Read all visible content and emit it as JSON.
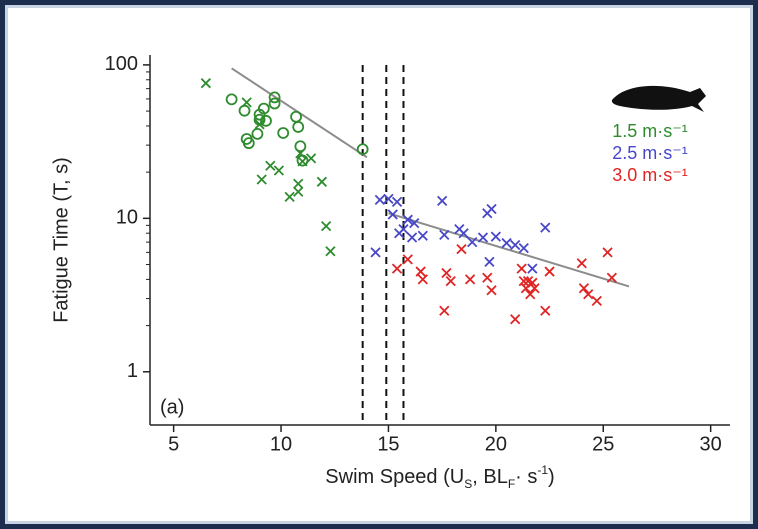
{
  "chart_data": {
    "type": "scatter",
    "x_label": [
      "Swim Speed (U",
      "S",
      ", BL",
      "F",
      "· s",
      "-1",
      ")"
    ],
    "y_label": "Fatigue Time (T, s)",
    "panel_label": "(a)",
    "xlim": [
      3.9,
      30.9
    ],
    "ylim": [
      0.45,
      116
    ],
    "xticks": [
      5,
      10,
      15,
      20,
      25,
      30
    ],
    "yticks": [
      1,
      10,
      100
    ],
    "y_scale": "log",
    "legend": "upper right",
    "series": [
      {
        "name": "1.5 m·s⁻¹",
        "color": "#2e8b2e",
        "marker": "circle",
        "x": [
          7.7,
          8.3,
          8.4,
          8.5,
          9.0,
          9.0,
          8.9,
          9.2,
          9.3,
          9.7,
          9.7,
          10.1,
          10.7,
          10.8,
          10.9,
          11.0,
          13.8
        ],
        "values": [
          59.6,
          50.3,
          32.9,
          30.9,
          43.9,
          47.4,
          35.5,
          51.9,
          43.2,
          61.4,
          56.0,
          36.0,
          45.9,
          39.4,
          29.5,
          23.8,
          28.2
        ]
      },
      {
        "color": "#2e8b2e",
        "marker": "x",
        "x": [
          6.5,
          8.4,
          9.0,
          9.1,
          9.5,
          9.9,
          10.4,
          10.8,
          10.8,
          10.9,
          11.0,
          11.4,
          11.9,
          12.1,
          12.3
        ],
        "values": [
          76,
          57,
          41,
          17.9,
          22,
          20.5,
          13.8,
          16.8,
          14.9,
          26.5,
          23.5,
          24.6,
          17.3,
          8.9,
          6.1
        ]
      },
      {
        "name": "2.5 m·s⁻¹",
        "color": "#4747c8",
        "marker": "x",
        "x": [
          14.4,
          14.6,
          15.0,
          15.2,
          15.4,
          15.5,
          15.7,
          15.9,
          16.1,
          16.2,
          16.6,
          17.5,
          17.6,
          18.3,
          18.5,
          18.9,
          19.4,
          19.6,
          19.7,
          19.8,
          20.0,
          20.5,
          20.9,
          21.3,
          21.7,
          22.3
        ],
        "values": [
          6.0,
          13.2,
          13.4,
          10.6,
          12.8,
          8.0,
          8.5,
          9.8,
          7.5,
          9.3,
          7.7,
          13.0,
          7.8,
          8.5,
          8.0,
          7.0,
          7.5,
          10.8,
          5.2,
          11.5,
          7.6,
          6.9,
          6.7,
          6.4,
          4.7,
          8.7
        ]
      },
      {
        "name": "3.0 m·s⁻¹",
        "color": "#e02424",
        "marker": "x",
        "x": [
          15.4,
          15.9,
          16.5,
          16.6,
          17.6,
          17.7,
          17.9,
          18.4,
          18.8,
          19.6,
          19.8,
          20.9,
          21.2,
          21.3,
          21.4,
          21.5,
          21.6,
          21.7,
          21.8,
          22.3,
          22.5,
          24.0,
          24.1,
          24.3,
          24.7,
          25.2,
          25.4
        ],
        "values": [
          4.7,
          5.4,
          4.5,
          4.0,
          2.5,
          4.4,
          3.9,
          6.3,
          4.0,
          4.1,
          3.4,
          2.2,
          4.7,
          3.9,
          3.5,
          3.9,
          3.2,
          3.8,
          3.5,
          2.5,
          4.5,
          5.1,
          3.5,
          3.2,
          2.9,
          6.0,
          4.1
        ]
      }
    ],
    "fit_lines": [
      {
        "color": "#8c8c8c",
        "x": [
          7.7,
          14.0
        ],
        "values": [
          95,
          25
        ]
      },
      {
        "color": "#8c8c8c",
        "x": [
          15.0,
          26.2
        ],
        "values": [
          10.8,
          3.6
        ]
      }
    ],
    "vlines": [
      13.8,
      14.9,
      15.7
    ]
  }
}
